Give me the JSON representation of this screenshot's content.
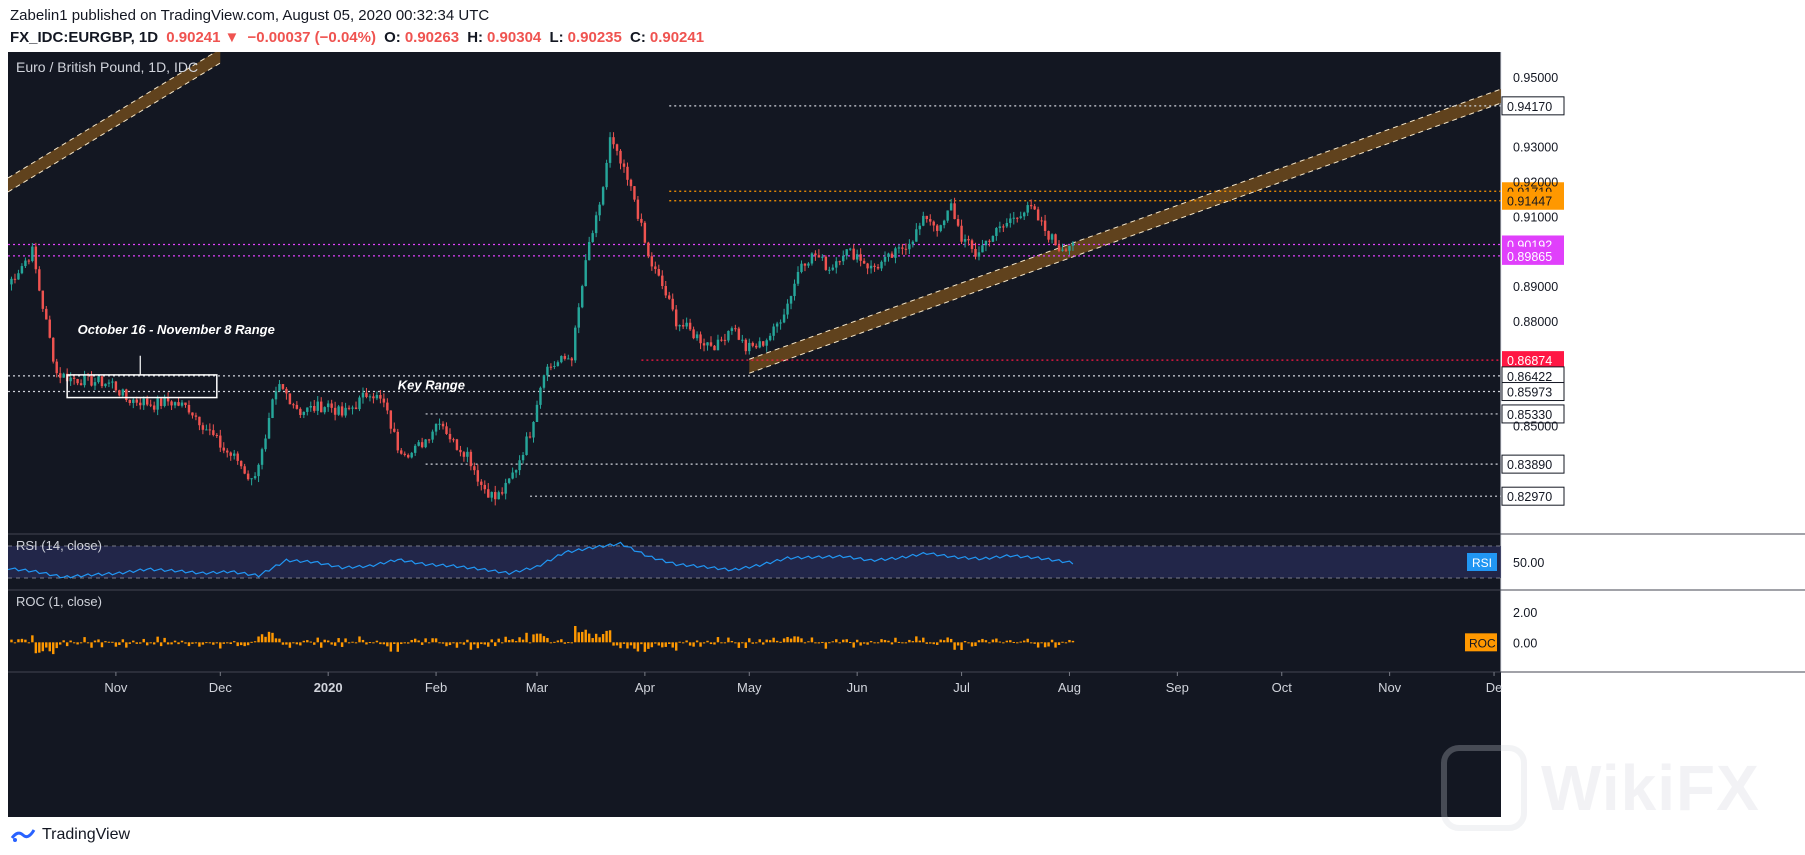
{
  "header": {
    "published_line": "Zabelin1 published on TradingView.com, August 05, 2020 00:32:34 UTC",
    "symbol": "FX_IDC:EURGBP, 1D",
    "last": "0.90241",
    "change": "−0.00037 (−0.04%)",
    "ohlc": [
      {
        "label": "O:",
        "value": "0.90263"
      },
      {
        "label": "H:",
        "value": "0.90304"
      },
      {
        "label": "L:",
        "value": "0.90235"
      },
      {
        "label": "C:",
        "value": "0.90241"
      }
    ]
  },
  "footer": {
    "brand": "TradingView"
  },
  "watermark": {
    "text": "WikiFX"
  },
  "colors": {
    "background": "#131722",
    "up": "#26a69a",
    "down": "#ef5350",
    "channel_fill": "#6e4a1c",
    "orange": "#ff9800",
    "magenta": "#e040fb",
    "red": "#ff1744",
    "rsi_line": "#2196f3",
    "rsi_band": "#2a2e5a"
  },
  "chart_data": {
    "type": "candlestick",
    "title": "Euro / British Pound, 1D, IDC",
    "y_range": [
      0.82,
      0.956
    ],
    "y_ticks": [
      "0.95000",
      "0.93000",
      "0.92000",
      "0.91000",
      "0.89000",
      "0.88000",
      "0.85000"
    ],
    "x_labels": [
      "Nov",
      "Dec",
      "2020",
      "Feb",
      "Mar",
      "Apr",
      "May",
      "Jun",
      "Jul",
      "Aug",
      "Sep",
      "Oct",
      "Nov",
      "De"
    ],
    "x_label_days": [
      31,
      61,
      92,
      123,
      152,
      183,
      213,
      244,
      274,
      305,
      336,
      366,
      397,
      427
    ],
    "x_day_range": [
      0,
      429
    ],
    "ohlc_anchor_days": [
      0,
      7,
      9,
      14,
      18,
      22,
      26,
      30,
      34,
      38,
      42,
      46,
      52,
      58,
      62,
      66,
      70,
      74,
      76,
      78,
      80,
      84,
      88,
      92,
      96,
      100,
      104,
      108,
      112,
      116,
      120,
      124,
      128,
      132,
      136,
      140,
      143,
      146,
      150,
      154,
      158,
      162,
      165,
      167,
      170,
      173,
      176,
      180,
      184,
      188,
      192,
      196,
      200,
      204,
      208,
      212,
      216,
      220,
      224,
      228,
      232,
      236,
      240,
      244,
      248,
      252,
      256,
      260,
      264,
      268,
      271,
      274,
      278,
      282,
      286,
      290,
      294,
      298,
      302,
      306
    ],
    "ohlc_anchor_close": [
      0.8905,
      0.9,
      0.889,
      0.865,
      0.8635,
      0.863,
      0.8625,
      0.862,
      0.8575,
      0.857,
      0.856,
      0.857,
      0.855,
      0.848,
      0.843,
      0.84,
      0.834,
      0.845,
      0.856,
      0.861,
      0.859,
      0.854,
      0.855,
      0.856,
      0.853,
      0.856,
      0.86,
      0.856,
      0.844,
      0.842,
      0.846,
      0.852,
      0.845,
      0.842,
      0.833,
      0.829,
      0.832,
      0.838,
      0.848,
      0.866,
      0.868,
      0.87,
      0.89,
      0.902,
      0.912,
      0.932,
      0.925,
      0.915,
      0.898,
      0.89,
      0.88,
      0.877,
      0.874,
      0.873,
      0.879,
      0.872,
      0.873,
      0.877,
      0.885,
      0.897,
      0.899,
      0.895,
      0.9,
      0.899,
      0.895,
      0.897,
      0.9,
      0.904,
      0.91,
      0.906,
      0.913,
      0.904,
      0.899,
      0.904,
      0.907,
      0.911,
      0.912,
      0.906,
      0.901,
      0.9024
    ],
    "horizontal_levels": [
      {
        "value": 0.9417,
        "label": "0.94170",
        "style": "white"
      },
      {
        "value": 0.91719,
        "label": "0.91719",
        "style": "orange"
      },
      {
        "value": 0.91447,
        "label": "0.91447",
        "style": "orange"
      },
      {
        "value": 0.90192,
        "label": "0.90192",
        "style": "magenta"
      },
      {
        "value": 0.89865,
        "label": "0.89865",
        "style": "magenta"
      },
      {
        "value": 0.86874,
        "label": "0.86874",
        "style": "red"
      },
      {
        "value": 0.86422,
        "label": "0.86422",
        "style": "white"
      },
      {
        "value": 0.85973,
        "label": "0.85973",
        "style": "white"
      },
      {
        "value": 0.8533,
        "label": "0.85330",
        "style": "white"
      },
      {
        "value": 0.8389,
        "label": "0.83890",
        "style": "white"
      },
      {
        "value": 0.8297,
        "label": "0.82970",
        "style": "white"
      }
    ],
    "channels": [
      {
        "day_start": 213,
        "y_start": 0.867,
        "day_end": 429,
        "y_end": 0.9445,
        "width": 0.004
      },
      {
        "day_start": 0,
        "y_start": 0.919,
        "day_end": 61,
        "y_end": 0.956,
        "width": 0.004
      }
    ],
    "annotations": [
      {
        "text": "October 16 - November 8 Range"
      },
      {
        "text": "Key Range"
      }
    ],
    "range_box": {
      "day_start": 17,
      "day_end": 60,
      "y_top": 0.8645,
      "y_bottom": 0.858
    },
    "rsi": {
      "title": "RSI (14, close)",
      "tick": "50.00",
      "tag": "RSI",
      "y_range": [
        20,
        80
      ],
      "band": [
        30,
        70
      ],
      "anchor_days": [
        0,
        8,
        16,
        24,
        32,
        40,
        48,
        56,
        64,
        72,
        80,
        88,
        96,
        104,
        112,
        120,
        128,
        136,
        144,
        152,
        160,
        168,
        176,
        184,
        192,
        200,
        208,
        216,
        224,
        232,
        240,
        248,
        256,
        264,
        272,
        280,
        288,
        296,
        306
      ],
      "anchor_values": [
        42,
        38,
        31,
        34,
        36,
        41,
        39,
        36,
        38,
        33,
        52,
        50,
        43,
        45,
        53,
        47,
        45,
        41,
        36,
        44,
        62,
        68,
        73,
        57,
        47,
        44,
        40,
        46,
        55,
        56,
        57,
        52,
        55,
        61,
        56,
        54,
        58,
        55,
        49
      ]
    },
    "roc": {
      "title": "ROC (1, close)",
      "ticks": [
        "2.00",
        "0.00"
      ],
      "tag": "ROC",
      "y_range": [
        -1.7,
        3.2
      ]
    }
  }
}
